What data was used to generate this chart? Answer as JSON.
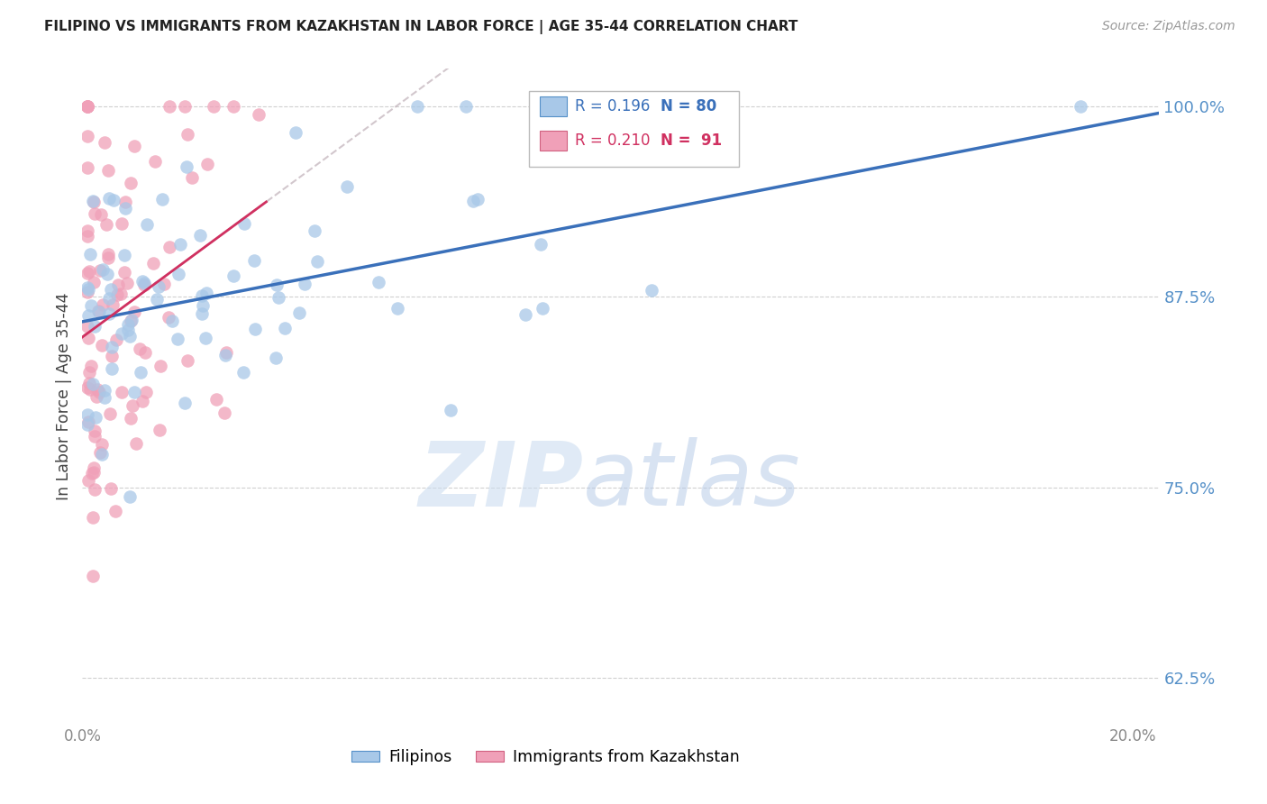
{
  "title": "FILIPINO VS IMMIGRANTS FROM KAZAKHSTAN IN LABOR FORCE | AGE 35-44 CORRELATION CHART",
  "source": "Source: ZipAtlas.com",
  "ylabel": "In Labor Force | Age 35-44",
  "xlim": [
    0.0,
    0.205
  ],
  "ylim": [
    0.595,
    1.025
  ],
  "yticks": [
    0.625,
    0.75,
    0.875,
    1.0
  ],
  "ytick_labels": [
    "62.5%",
    "75.0%",
    "87.5%",
    "100.0%"
  ],
  "xtick_vals": [
    0.0,
    0.05,
    0.1,
    0.15,
    0.2
  ],
  "xtick_labels": [
    "0.0%",
    "",
    "",
    "",
    "20.0%"
  ],
  "blue_color": "#a8c8e8",
  "blue_edge_color": "#5590c8",
  "blue_line_color": "#3a70ba",
  "pink_color": "#f0a0b8",
  "pink_edge_color": "#d06080",
  "pink_line_color": "#d03060",
  "legend_R_blue": "0.196",
  "legend_N_blue": "80",
  "legend_R_pink": "0.210",
  "legend_N_pink": "91",
  "blue_N": 80,
  "pink_N": 91,
  "watermark_zip": "ZIP",
  "watermark_atlas": "atlas",
  "background_color": "#ffffff",
  "grid_color": "#d0d0d0",
  "blue_seed": 42,
  "pink_seed": 13,
  "title_color": "#222222",
  "source_color": "#999999",
  "ylabel_color": "#444444",
  "ytick_color": "#5590c8",
  "xtick_color": "#888888"
}
